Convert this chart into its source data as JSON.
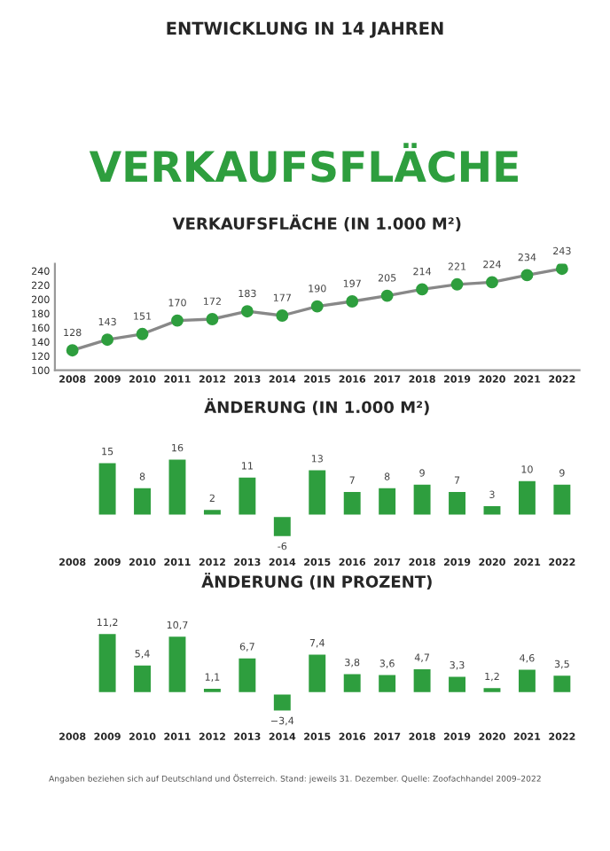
{
  "chart_data": [
    {
      "type": "line",
      "title": "VERKAUFSFLÄCHE (IN 1.000 M²)",
      "annotations": [
        "ENTWICKLUNG IN 14 JAHREN",
        "VERKAUFSFLÄCHE"
      ],
      "categories": [
        "2008",
        "2009",
        "2010",
        "2011",
        "2012",
        "2013",
        "2014",
        "2015",
        "2016",
        "2017",
        "2018",
        "2019",
        "2020",
        "2021",
        "2022"
      ],
      "series": [
        {
          "color": "#2e9e3e",
          "values": [
            128,
            143,
            151,
            170,
            172,
            183,
            177,
            190,
            197,
            205,
            214,
            221,
            224,
            234,
            243
          ]
        }
      ],
      "ylim": [
        100,
        250
      ],
      "yticks": [
        100,
        120,
        140,
        160,
        180,
        200,
        220,
        240
      ],
      "data_labels": true,
      "marker": "circle",
      "grid": false
    },
    {
      "type": "bar",
      "title": "ÄNDERUNG (IN 1.000 M²)",
      "tick_labels": "x",
      "categories": [
        "2008",
        "2009",
        "2010",
        "2011",
        "2012",
        "2013",
        "2014",
        "2015",
        "2016",
        "2017",
        "2018",
        "2019",
        "2020",
        "2021",
        "2022"
      ],
      "series": [
        {
          "color": "#2e9e3e",
          "values": [
            null,
            15,
            8,
            16,
            2,
            11,
            -6,
            13,
            7,
            8,
            9,
            7,
            3,
            10,
            9
          ]
        }
      ],
      "data_labels": true
    },
    {
      "type": "bar",
      "title": "ÄNDERUNG (IN PROZENT)",
      "tick_labels": "x",
      "categories": [
        "2008",
        "2009",
        "2010",
        "2011",
        "2012",
        "2013",
        "2014",
        "2015",
        "2016",
        "2017",
        "2018",
        "2019",
        "2020",
        "2021",
        "2022"
      ],
      "series": [
        {
          "color": "#2e9e3e",
          "values": [
            null,
            11.2,
            5.4,
            10.7,
            1.1,
            6.7,
            -3.4,
            7.4,
            3.8,
            3.6,
            4.7,
            3.3,
            1.2,
            4.6,
            3.5
          ],
          "value_labels": [
            null,
            "11,2",
            "5,4",
            "10,7",
            "1,1",
            "6,7",
            "−3,4",
            "7,4",
            "3,8",
            "3,6",
            "4,7",
            "3,3",
            "1,2",
            "4,6",
            "3,5"
          ]
        }
      ],
      "annotations": [
        "Angaben beziehen sich auf Deutschland und Österreich. Stand: jeweils 31. Dezember. Quelle: Zoofachhandel 2009–2022"
      ]
    }
  ]
}
